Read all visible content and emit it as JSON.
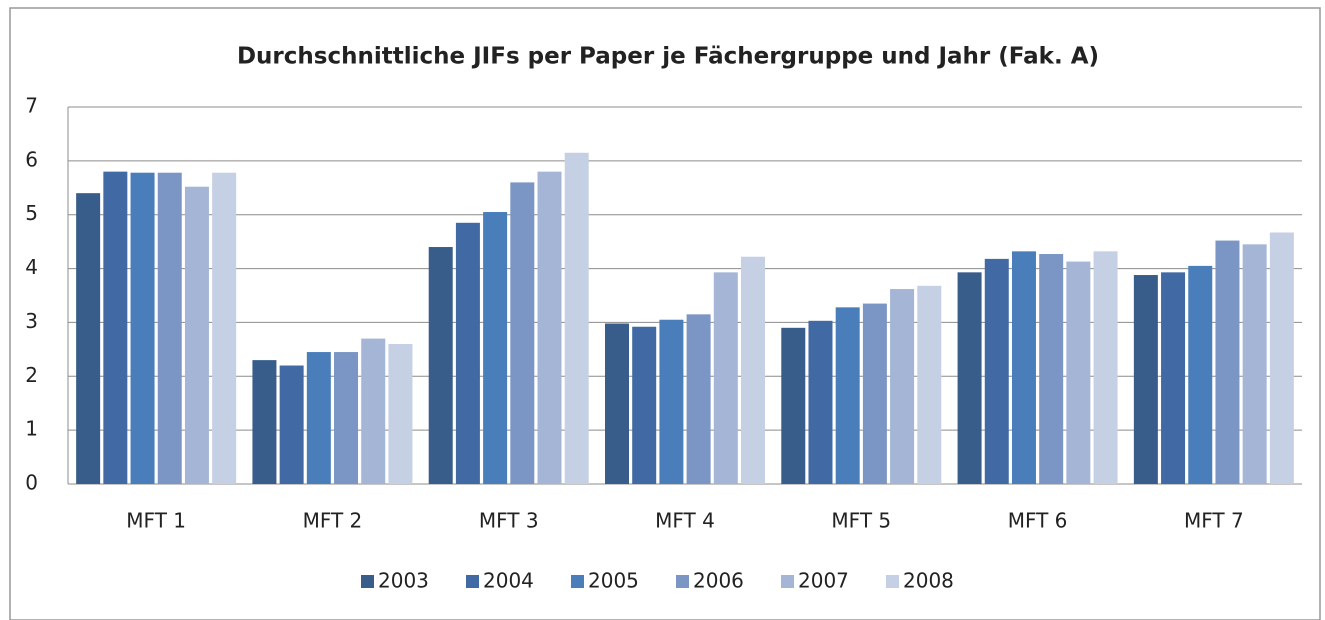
{
  "chart_data": {
    "type": "bar",
    "title": "Durchschnittliche JIFs per Paper je Fächergruppe und Jahr (Fak. A)",
    "categories": [
      "MFT 1",
      "MFT 2",
      "MFT 3",
      "MFT 4",
      "MFT 5",
      "MFT 6",
      "MFT 7"
    ],
    "series": [
      {
        "name": "2003",
        "color": "#385d8a",
        "values": [
          5.4,
          2.3,
          4.4,
          2.98,
          2.9,
          3.93,
          3.88
        ]
      },
      {
        "name": "2004",
        "color": "#4169a4",
        "values": [
          5.8,
          2.2,
          4.85,
          2.92,
          3.03,
          4.18,
          3.93
        ]
      },
      {
        "name": "2005",
        "color": "#4a7ebb",
        "values": [
          5.78,
          2.45,
          5.05,
          3.05,
          3.28,
          4.32,
          4.05
        ]
      },
      {
        "name": "2006",
        "color": "#7b96c4",
        "values": [
          5.78,
          2.45,
          5.6,
          3.15,
          3.35,
          4.27,
          4.52
        ]
      },
      {
        "name": "2007",
        "color": "#a5b5d6",
        "values": [
          5.52,
          2.7,
          5.8,
          3.93,
          3.62,
          4.13,
          4.45
        ]
      },
      {
        "name": "2008",
        "color": "#c6d0e4",
        "values": [
          5.78,
          2.6,
          6.15,
          4.22,
          3.68,
          4.32,
          4.67
        ]
      }
    ],
    "ylim": [
      0,
      7
    ],
    "yticks": [
      0,
      1,
      2,
      3,
      4,
      5,
      6,
      7
    ],
    "grid": true,
    "legend": "bottom"
  }
}
